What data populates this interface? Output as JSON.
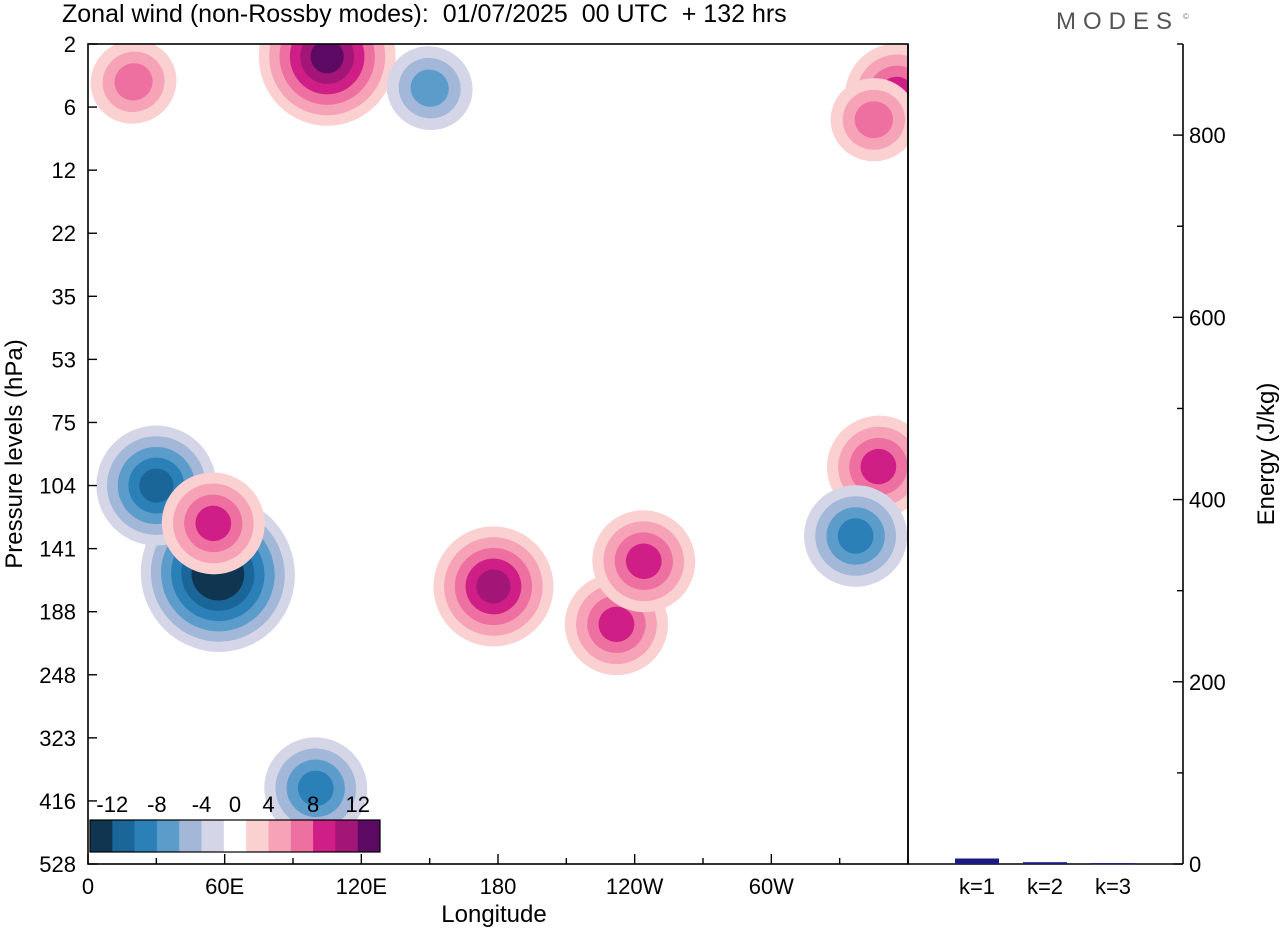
{
  "header": {
    "title": "Zonal wind (non-Rossby modes):  01/07/2025  00 UTC  + 132 hrs",
    "brand": "MODES",
    "brand_mark": "©"
  },
  "chart_data": [
    {
      "type": "heatmap",
      "title": "Zonal wind (non-Rossby modes):  01/07/2025  00 UTC  + 132 hrs",
      "xlabel": "Longitude",
      "ylabel": "Pressure levels (hPa)",
      "x_ticks": [
        "0",
        "60E",
        "120E",
        "180",
        "120W",
        "60W"
      ],
      "x_tick_degrees": [
        0,
        60,
        120,
        180,
        240,
        300
      ],
      "xlim": [
        0,
        360
      ],
      "y_ticks": [
        "2",
        "6",
        "12",
        "22",
        "35",
        "53",
        "75",
        "104",
        "141",
        "188",
        "248",
        "323",
        "416",
        "528"
      ],
      "colorbar": {
        "labels": [
          "-12",
          "-8",
          "-4",
          "0",
          "4",
          "8",
          "12"
        ],
        "label_values": [
          -12,
          -8,
          -4,
          0,
          4,
          8,
          12
        ],
        "levels": [
          -14,
          -12,
          -10,
          -8,
          -6,
          -4,
          -2,
          2,
          4,
          6,
          8,
          10,
          12,
          14
        ],
        "colors": [
          "#0f3550",
          "#1a6699",
          "#2c80b8",
          "#5b9ccb",
          "#a3b7d8",
          "#d4d6e8",
          "#ffffff",
          "#fbd0d0",
          "#f6a3b8",
          "#ee70a0",
          "#cf1f87",
          "#a41578",
          "#5c0a63"
        ]
      },
      "features": [
        {
          "lon": 57,
          "level_index": 8.4,
          "value": -14
        },
        {
          "lon": 30,
          "level_index": 7.0,
          "value": -10
        },
        {
          "lon": 55,
          "level_index": 7.6,
          "value": 8
        },
        {
          "lon": 178,
          "level_index": 8.6,
          "value": 10
        },
        {
          "lon": 232,
          "level_index": 9.2,
          "value": 8
        },
        {
          "lon": 244,
          "level_index": 8.2,
          "value": 8
        },
        {
          "lon": 347,
          "level_index": 6.7,
          "value": 8
        },
        {
          "lon": 337,
          "level_index": 7.8,
          "value": -8
        },
        {
          "lon": 100,
          "level_index": 11.8,
          "value": -8
        },
        {
          "lon": 20,
          "level_index": 0.6,
          "value": 6
        },
        {
          "lon": 105,
          "level_index": 0.2,
          "value": 12
        },
        {
          "lon": 150,
          "level_index": 0.7,
          "value": -6
        },
        {
          "lon": 355,
          "level_index": 0.8,
          "value": 8
        },
        {
          "lon": 345,
          "level_index": 1.2,
          "value": 6
        }
      ]
    },
    {
      "type": "bar",
      "categories": [
        "k=1",
        "k=2",
        "k=3"
      ],
      "values": [
        6,
        2,
        1
      ],
      "ylabel": "Energy (J/kg)",
      "ylim": [
        0,
        900
      ],
      "y_ticks": [
        "0",
        "200",
        "400",
        "600",
        "800"
      ],
      "y_tick_values": [
        0,
        200,
        400,
        600,
        800
      ],
      "bar_color": "#1a1a80"
    }
  ]
}
